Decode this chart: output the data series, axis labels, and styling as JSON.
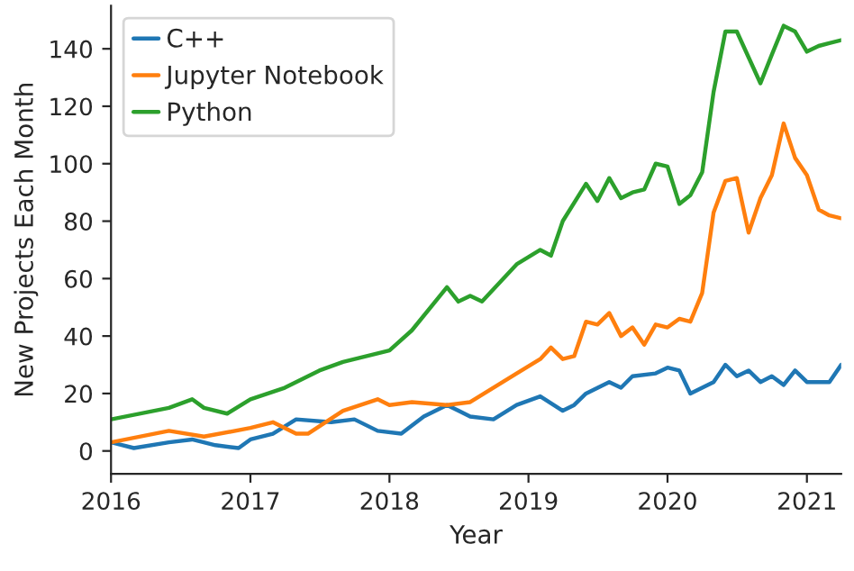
{
  "chart_data": {
    "type": "line",
    "xlabel": "Year",
    "ylabel": "New Projects Each Month",
    "xlim": [
      "2016-01",
      "2021-04"
    ],
    "ylim": [
      -8,
      155
    ],
    "xticks": [
      {
        "value": "2016-01",
        "label": "2016"
      },
      {
        "value": "2017-01",
        "label": "2017"
      },
      {
        "value": "2018-01",
        "label": "2018"
      },
      {
        "value": "2019-01",
        "label": "2019"
      },
      {
        "value": "2020-01",
        "label": "2020"
      },
      {
        "value": "2021-01",
        "label": "2021"
      }
    ],
    "yticks": [
      0,
      20,
      40,
      60,
      80,
      100,
      120,
      140
    ],
    "grid": false,
    "legend": "top left",
    "series": [
      {
        "name": "C++",
        "color": "#1f77b4",
        "x": [
          "2016-01",
          "2016-03",
          "2016-06",
          "2016-08",
          "2016-10",
          "2016-12",
          "2017-01",
          "2017-03",
          "2017-05",
          "2017-08",
          "2017-10",
          "2017-12",
          "2018-02",
          "2018-04",
          "2018-06",
          "2018-08",
          "2018-10",
          "2018-12",
          "2019-02",
          "2019-04",
          "2019-05",
          "2019-06",
          "2019-08",
          "2019-09",
          "2019-10",
          "2019-12",
          "2020-01",
          "2020-02",
          "2020-03",
          "2020-05",
          "2020-06",
          "2020-07",
          "2020-08",
          "2020-09",
          "2020-10",
          "2020-11",
          "2020-12",
          "2021-01",
          "2021-02",
          "2021-03",
          "2021-04"
        ],
        "values": [
          3,
          1,
          3,
          4,
          2,
          1,
          4,
          6,
          11,
          10,
          11,
          7,
          6,
          12,
          16,
          12,
          11,
          16,
          19,
          14,
          16,
          20,
          24,
          22,
          26,
          27,
          29,
          28,
          20,
          24,
          30,
          26,
          28,
          24,
          26,
          23,
          28,
          24,
          24,
          24,
          30
        ]
      },
      {
        "name": "Jupyter Notebook",
        "color": "#ff7f0e",
        "x": [
          "2016-01",
          "2016-06",
          "2016-09",
          "2017-01",
          "2017-03",
          "2017-05",
          "2017-06",
          "2017-09",
          "2017-12",
          "2018-01",
          "2018-03",
          "2018-06",
          "2018-08",
          "2018-12",
          "2019-02",
          "2019-03",
          "2019-04",
          "2019-05",
          "2019-06",
          "2019-07",
          "2019-08",
          "2019-09",
          "2019-10",
          "2019-11",
          "2019-12",
          "2020-01",
          "2020-02",
          "2020-03",
          "2020-04",
          "2020-05",
          "2020-06",
          "2020-07",
          "2020-08",
          "2020-09",
          "2020-10",
          "2020-11",
          "2020-12",
          "2021-01",
          "2021-02",
          "2021-03",
          "2021-04"
        ],
        "values": [
          3,
          7,
          5,
          8,
          10,
          6,
          6,
          14,
          18,
          16,
          17,
          16,
          17,
          27,
          32,
          36,
          32,
          33,
          45,
          44,
          48,
          40,
          43,
          37,
          44,
          43,
          46,
          45,
          55,
          83,
          94,
          95,
          76,
          88,
          96,
          114,
          102,
          96,
          84,
          82,
          81
        ]
      },
      {
        "name": "Python",
        "color": "#2ca02c",
        "x": [
          "2016-01",
          "2016-06",
          "2016-08",
          "2016-09",
          "2016-11",
          "2017-01",
          "2017-04",
          "2017-07",
          "2017-09",
          "2018-01",
          "2018-03",
          "2018-06",
          "2018-07",
          "2018-08",
          "2018-09",
          "2018-12",
          "2019-02",
          "2019-03",
          "2019-04",
          "2019-06",
          "2019-07",
          "2019-08",
          "2019-09",
          "2019-10",
          "2019-11",
          "2019-12",
          "2020-01",
          "2020-02",
          "2020-03",
          "2020-04",
          "2020-05",
          "2020-06",
          "2020-07",
          "2020-08",
          "2020-09",
          "2020-10",
          "2020-11",
          "2020-12",
          "2021-01",
          "2021-02",
          "2021-03",
          "2021-04"
        ],
        "values": [
          11,
          15,
          18,
          15,
          13,
          18,
          22,
          28,
          31,
          35,
          42,
          57,
          52,
          54,
          52,
          65,
          70,
          68,
          80,
          93,
          87,
          95,
          88,
          90,
          91,
          100,
          99,
          86,
          89,
          97,
          125,
          146,
          146,
          137,
          128,
          138,
          148,
          146,
          139,
          141,
          142,
          143
        ]
      }
    ]
  }
}
